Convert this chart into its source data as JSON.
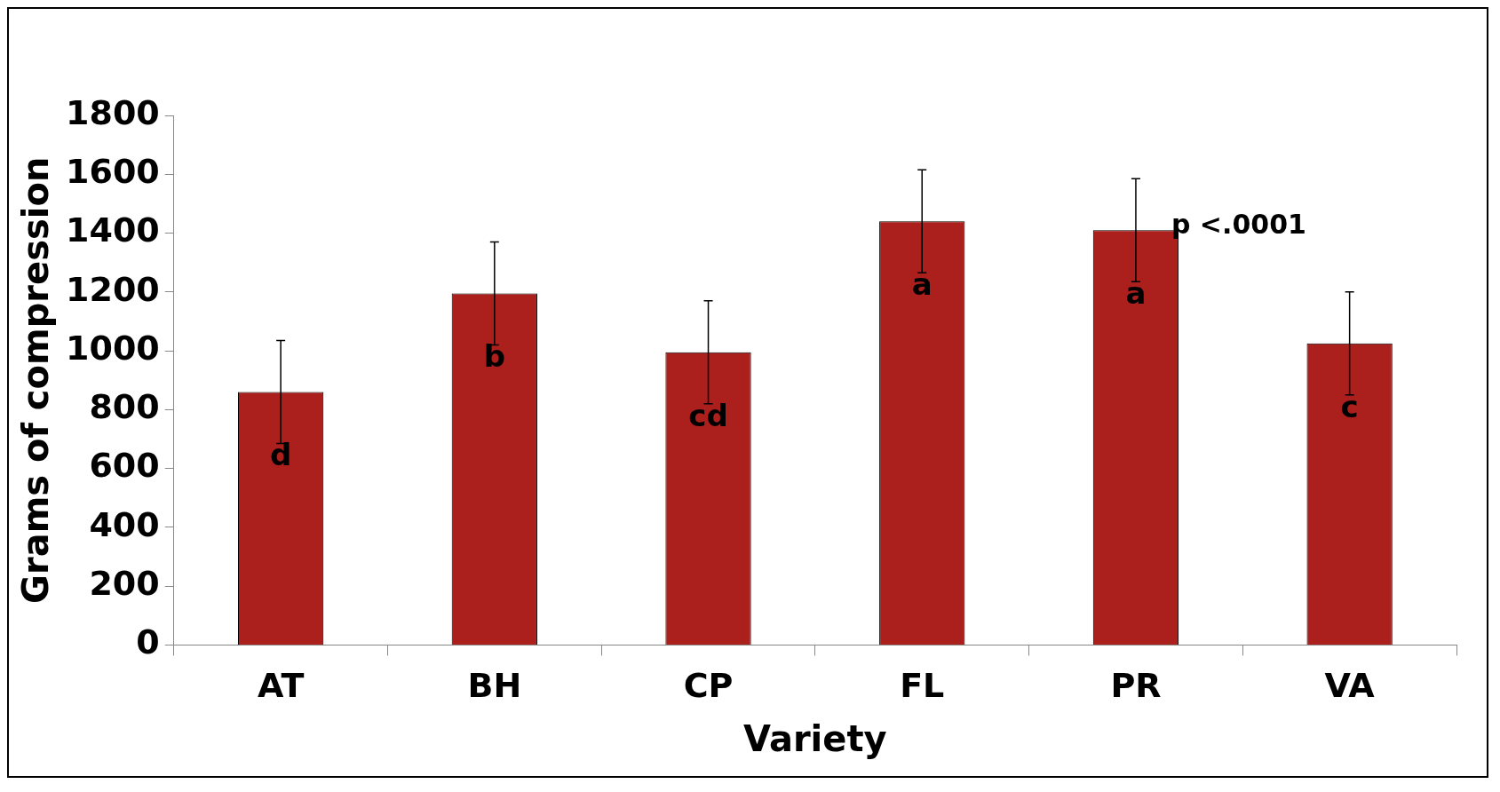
{
  "chart_data": {
    "type": "bar",
    "xlabel": "Variety",
    "ylabel": "Grams of compression",
    "categories": [
      "AT",
      "BH",
      "CP",
      "FL",
      "PR",
      "VA"
    ],
    "values": [
      860,
      1195,
      995,
      1440,
      1410,
      1025
    ],
    "errors": [
      175,
      175,
      175,
      175,
      175,
      175
    ],
    "color": "#ab1f1d",
    "ylim": [
      0,
      1800
    ],
    "yticks": [
      0,
      200,
      400,
      600,
      800,
      1000,
      1200,
      1400,
      1600,
      1800
    ],
    "grid": false,
    "legend": false,
    "annotations": [
      "d",
      "b",
      "cd",
      "a",
      "a",
      "c",
      "p <.0001"
    ]
  }
}
